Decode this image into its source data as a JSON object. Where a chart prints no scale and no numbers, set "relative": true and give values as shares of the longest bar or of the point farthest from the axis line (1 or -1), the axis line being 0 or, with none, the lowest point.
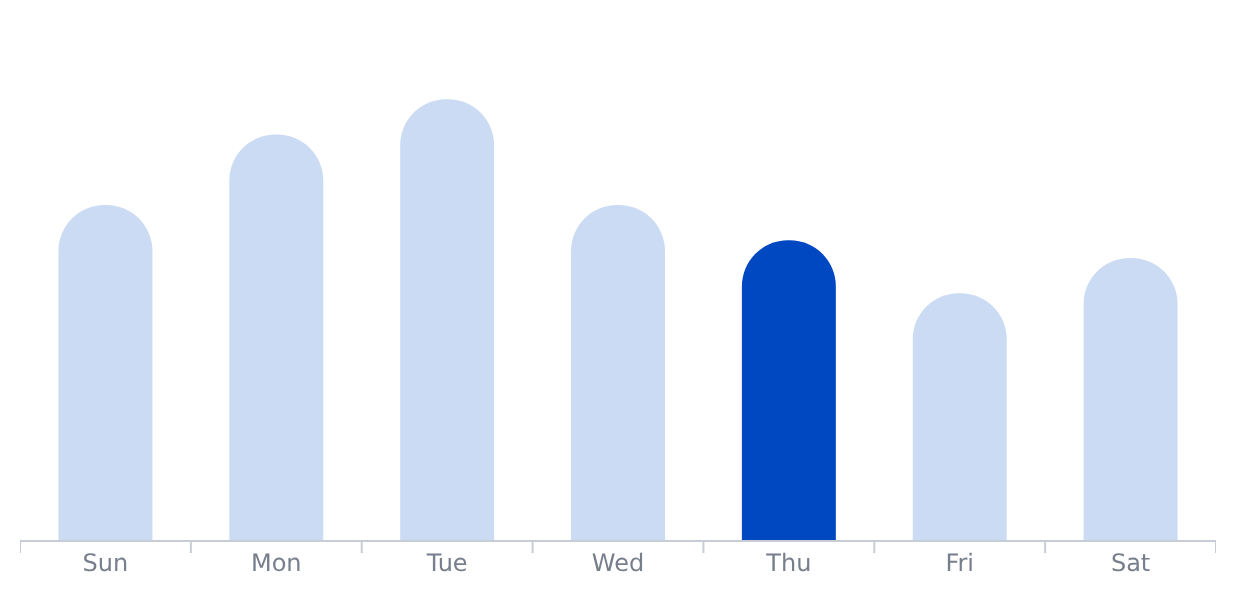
{
  "chart_data": {
    "type": "bar",
    "relative": true,
    "categories": [
      "Sun",
      "Mon",
      "Tue",
      "Wed",
      "Thu",
      "Fri",
      "Sat"
    ],
    "values": [
      0.76,
      0.92,
      1,
      0.76,
      0.68,
      0.56,
      0.64
    ],
    "colors": [
      "#cbdbf4",
      "#cbdbf4",
      "#cbdbf4",
      "#cbdbf4",
      "#0047c2",
      "#cbdbf4",
      "#cbdbf4"
    ]
  }
}
